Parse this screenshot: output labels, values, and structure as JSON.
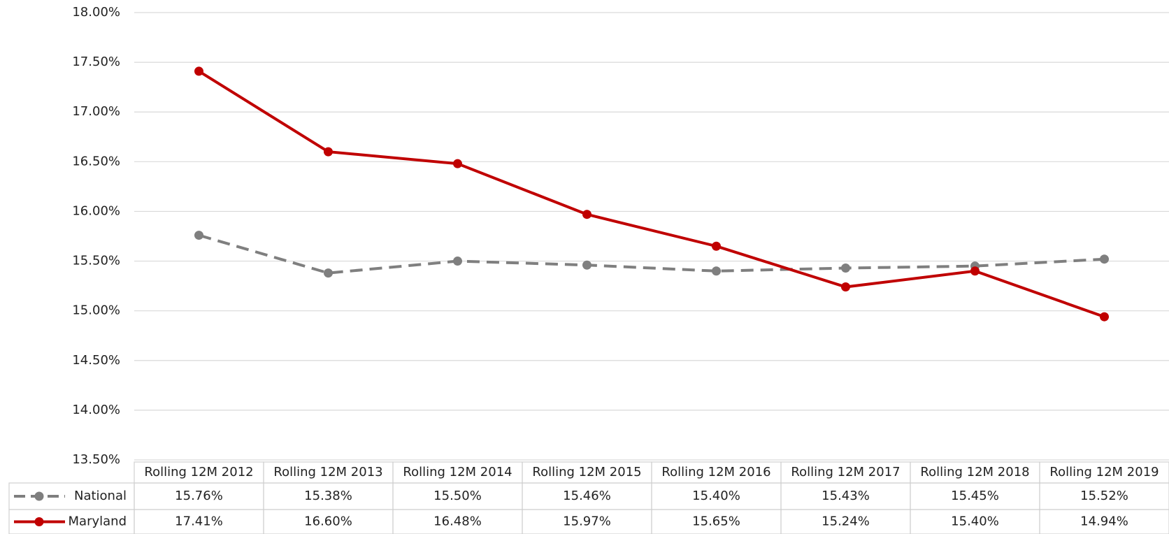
{
  "chart_data": {
    "type": "line",
    "categories": [
      "Rolling 12M 2012",
      "Rolling 12M 2013",
      "Rolling 12M 2014",
      "Rolling 12M 2015",
      "Rolling 12M 2016",
      "Rolling 12M 2017",
      "Rolling 12M 2018",
      "Rolling 12M 2019"
    ],
    "series": [
      {
        "name": "National",
        "color": "#7f7f7f",
        "dashed": true,
        "values": [
          15.76,
          15.38,
          15.5,
          15.46,
          15.4,
          15.43,
          15.45,
          15.52
        ],
        "value_labels": [
          "15.76%",
          "15.38%",
          "15.50%",
          "15.46%",
          "15.40%",
          "15.43%",
          "15.45%",
          "15.52%"
        ]
      },
      {
        "name": "Maryland",
        "color": "#c00000",
        "dashed": false,
        "values": [
          17.41,
          16.6,
          16.48,
          15.97,
          15.65,
          15.24,
          15.4,
          14.94
        ],
        "value_labels": [
          "17.41%",
          "16.60%",
          "16.48%",
          "15.97%",
          "15.65%",
          "15.24%",
          "15.40%",
          "14.94%"
        ]
      }
    ],
    "ylim": [
      13.5,
      18
    ],
    "yticks": [
      {
        "value": 13.5,
        "label": "13.50%"
      },
      {
        "value": 14,
        "label": "14.00%"
      },
      {
        "value": 14.5,
        "label": "14.50%"
      },
      {
        "value": 15,
        "label": "15.00%"
      },
      {
        "value": 15.5,
        "label": "15.50%"
      },
      {
        "value": 16,
        "label": "16.00%"
      },
      {
        "value": 16.5,
        "label": "16.50%"
      },
      {
        "value": 17,
        "label": "17.00%"
      },
      {
        "value": 17.5,
        "label": "17.50%"
      },
      {
        "value": 18,
        "label": "18.00%"
      }
    ],
    "grid": true
  }
}
